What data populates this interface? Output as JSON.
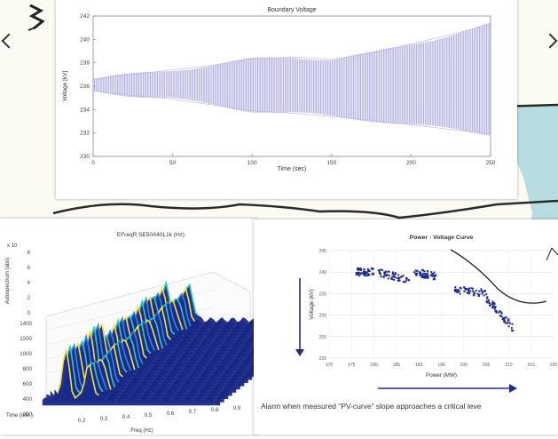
{
  "colors": {
    "water": "#b8dde0",
    "land": "#fbfbf4",
    "border": "#2a2a2a"
  },
  "chart_data": [
    {
      "type": "line",
      "title": "Boundary Voltage",
      "xlabel": "Time (sec)",
      "ylabel": "Voltage [kV]",
      "xlim": [
        0,
        250
      ],
      "ylim": [
        230,
        242
      ],
      "xticks": [
        "0",
        "50",
        "100",
        "150",
        "200",
        "250"
      ],
      "yticks": [
        "230",
        "232",
        "234",
        "236",
        "238",
        "240",
        "242"
      ],
      "series": [
        {
          "x": [
            0,
            25,
            50,
            75,
            100,
            125,
            150,
            175,
            200,
            225,
            250
          ],
          "upper": [
            236.6,
            237.0,
            237.4,
            237.8,
            238.3,
            238.5,
            238.3,
            238.8,
            239.6,
            240.4,
            241.3
          ],
          "lower": [
            235.6,
            235.2,
            234.9,
            234.4,
            233.9,
            233.7,
            233.4,
            233.1,
            232.7,
            232.3,
            231.9
          ]
        }
      ],
      "grid": false
    },
    {
      "type": "area",
      "title": "EFreqR SE50A40L1k (Hz)",
      "xlabel": "Freq (Hz)",
      "ylabel": "Autospectrum (abs)",
      "zlabel": "Time (min.)",
      "xticks": [
        "0.2",
        "0.3",
        "0.4",
        "0.5",
        "0.6",
        "0.7",
        "0.8",
        "0.9"
      ],
      "yticks": [
        "1400",
        "1200",
        "1000",
        "800",
        "600",
        "400",
        "200"
      ],
      "zticks": [
        "8",
        "6",
        "4",
        "2",
        "0"
      ],
      "zscale_label": "x 10",
      "peaks_hz": [
        0.25,
        0.32
      ]
    },
    {
      "type": "scatter",
      "title": "Power - Voltage Curve",
      "xlabel": "Power (MW)",
      "ylabel": "Voltage (kV)",
      "xlim": [
        170,
        220
      ],
      "ylim": [
        220,
        245
      ],
      "xticks": [
        "170",
        "175",
        "180",
        "185",
        "190",
        "195",
        "200",
        "205",
        "210",
        "215",
        "220"
      ],
      "yticks": [
        "220",
        "225",
        "230",
        "235",
        "240",
        "245"
      ],
      "grid": true,
      "clusters": [
        {
          "x": [
            176,
            180
          ],
          "y": [
            240,
            240
          ]
        },
        {
          "x": [
            181,
            188
          ],
          "y": [
            238,
            240
          ]
        },
        {
          "x": [
            189,
            194
          ],
          "y": [
            239,
            240
          ]
        },
        {
          "x": [
            198,
            205
          ],
          "y": [
            235,
            236
          ]
        },
        {
          "x": [
            205,
            211
          ],
          "y": [
            227,
            234
          ]
        }
      ],
      "caption": "Alarm when measured “PV-curve” slope approaches a critical leve"
    }
  ]
}
